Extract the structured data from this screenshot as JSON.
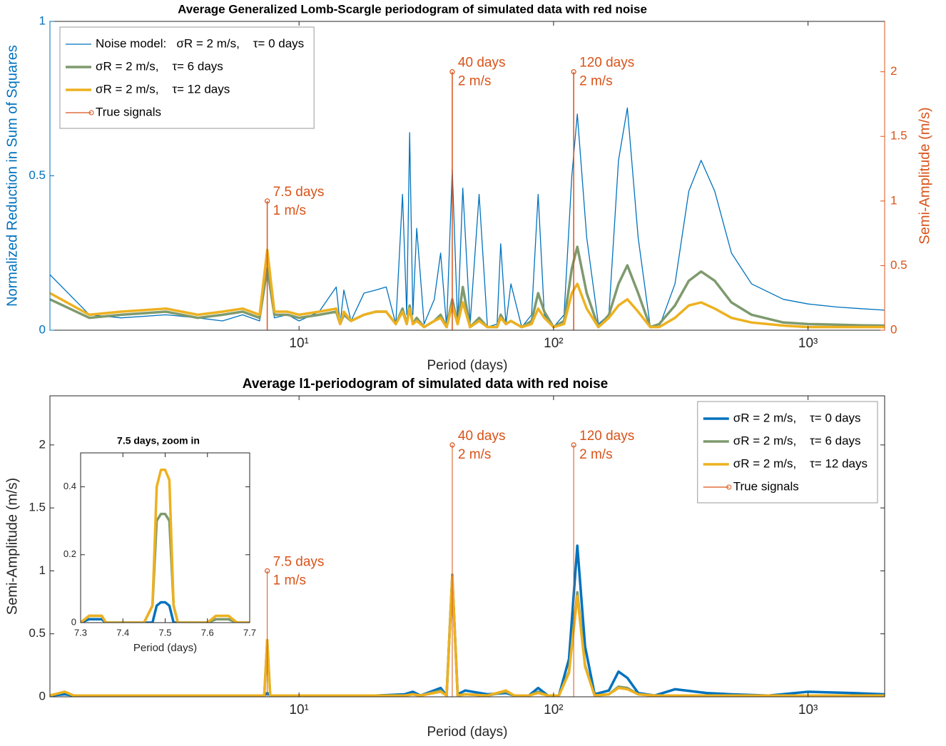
{
  "chart_data": [
    {
      "type": "line",
      "title": "Average Generalized Lomb-Scargle periodogram of simulated data with red noise",
      "xlabel": "Period (days)",
      "ylabel": "Normalized Reduction in Sum of Squares",
      "y2label": "Semi-Amplitude (m/s)",
      "y_color": "#0072BD",
      "y2_color": "#D95319",
      "xscale": "log",
      "xlim": [
        1.05,
        2000
      ],
      "xticks": [
        {
          "value": 10,
          "label": "10¹"
        },
        {
          "value": 100,
          "label": "10²"
        },
        {
          "value": 1000,
          "label": "10³"
        }
      ],
      "ylim": [
        0,
        1
      ],
      "yticks": [
        0,
        0.5,
        1
      ],
      "y2lim": [
        0,
        2.39
      ],
      "y2ticks": [
        0,
        0.5,
        1,
        1.5,
        2
      ],
      "legend": "upper left",
      "x": [
        1.05,
        1.5,
        2,
        3,
        4,
        5,
        6,
        7,
        7.5,
        8,
        9,
        10,
        12,
        14,
        14.5,
        15,
        16,
        18,
        20,
        22,
        24,
        25.5,
        26.5,
        27.2,
        28,
        29,
        31,
        34,
        36,
        38,
        40,
        42,
        44,
        47,
        51,
        55,
        60,
        62,
        65,
        68,
        75,
        82,
        87,
        92,
        100,
        110,
        118,
        124,
        135,
        150,
        165,
        180,
        195,
        215,
        240,
        260,
        300,
        340,
        380,
        430,
        500,
        600,
        800,
        1000,
        1300,
        1600,
        2000
      ],
      "series": [
        {
          "name": "Noise model:   σR = 2 m/s,    τ= 0 days",
          "color": "#0072BD",
          "line_width": 1.3,
          "values": [
            0.18,
            0.05,
            0.04,
            0.05,
            0.04,
            0.03,
            0.05,
            0.03,
            0.2,
            0.04,
            0.05,
            0.03,
            0.06,
            0.14,
            0.02,
            0.13,
            0.03,
            0.12,
            0.13,
            0.14,
            0.02,
            0.44,
            0.05,
            0.64,
            0.05,
            0.33,
            0.02,
            0.1,
            0.25,
            0.01,
            0.52,
            0.02,
            0.46,
            0.02,
            0.44,
            0.01,
            0.02,
            0.28,
            0.02,
            0.15,
            0.01,
            0.05,
            0.44,
            0.05,
            0.01,
            0.05,
            0.5,
            0.7,
            0.3,
            0.02,
            0.05,
            0.55,
            0.72,
            0.3,
            0.01,
            0.01,
            0.15,
            0.45,
            0.55,
            0.45,
            0.25,
            0.15,
            0.1,
            0.085,
            0.075,
            0.07,
            0.065
          ]
        },
        {
          "name": "σR = 2 m/s,    τ= 6 days",
          "color": "#7E9A6E",
          "line_width": 3.5,
          "values": [
            0.1,
            0.04,
            0.05,
            0.06,
            0.04,
            0.05,
            0.06,
            0.04,
            0.2,
            0.05,
            0.05,
            0.04,
            0.05,
            0.06,
            0.02,
            0.05,
            0.03,
            0.05,
            0.06,
            0.06,
            0.02,
            0.07,
            0.02,
            0.08,
            0.02,
            0.04,
            0.01,
            0.03,
            0.05,
            0.01,
            0.1,
            0.02,
            0.14,
            0.01,
            0.04,
            0.01,
            0.01,
            0.05,
            0.02,
            0.03,
            0.01,
            0.03,
            0.12,
            0.06,
            0.01,
            0.03,
            0.2,
            0.27,
            0.12,
            0.01,
            0.05,
            0.15,
            0.21,
            0.12,
            0.01,
            0.02,
            0.08,
            0.16,
            0.19,
            0.16,
            0.09,
            0.05,
            0.025,
            0.02,
            0.018,
            0.016,
            0.015
          ]
        },
        {
          "name": "σR = 2 m/s,    τ= 12 days",
          "color": "#EDB120",
          "line_width": 3.5,
          "values": [
            0.12,
            0.05,
            0.06,
            0.07,
            0.05,
            0.06,
            0.07,
            0.05,
            0.26,
            0.06,
            0.06,
            0.05,
            0.06,
            0.07,
            0.02,
            0.06,
            0.03,
            0.05,
            0.06,
            0.06,
            0.02,
            0.06,
            0.02,
            0.07,
            0.02,
            0.03,
            0.01,
            0.03,
            0.04,
            0.01,
            0.08,
            0.02,
            0.09,
            0.01,
            0.03,
            0.01,
            0.01,
            0.04,
            0.02,
            0.03,
            0.01,
            0.02,
            0.07,
            0.04,
            0.01,
            0.02,
            0.12,
            0.15,
            0.07,
            0.01,
            0.04,
            0.08,
            0.1,
            0.06,
            0.01,
            0.01,
            0.04,
            0.08,
            0.09,
            0.07,
            0.04,
            0.025,
            0.015,
            0.01,
            0.01,
            0.01,
            0.01
          ]
        },
        {
          "name": "True signals",
          "type": "stem",
          "axis": "y2",
          "color": "#D95319",
          "line_width": 1.5,
          "x": [
            7.5,
            40,
            120
          ],
          "values": [
            1,
            2,
            2
          ],
          "annotations": [
            [
              "7.5 days",
              "1 m/s"
            ],
            [
              "40 days",
              "2 m/s"
            ],
            [
              "120 days",
              "2 m/s"
            ]
          ]
        }
      ]
    },
    {
      "type": "line",
      "title": "Average l1-periodogram of simulated data with red noise",
      "xlabel": "Period (days)",
      "ylabel": "Semi-Amplitude (m/s)",
      "xscale": "log",
      "xlim": [
        1.05,
        2000
      ],
      "xticks": [
        {
          "value": 10,
          "label": "10¹"
        },
        {
          "value": 100,
          "label": "10²"
        },
        {
          "value": 1000,
          "label": "10³"
        }
      ],
      "ylim": [
        0,
        2.39
      ],
      "yticks": [
        0,
        0.5,
        1,
        1.5,
        2
      ],
      "legend": "upper right",
      "x": [
        1.05,
        1.2,
        1.3,
        2,
        5,
        7.3,
        7.5,
        7.7,
        10,
        20,
        26,
        28,
        30,
        36,
        38,
        40,
        42,
        45,
        55,
        65,
        70,
        80,
        87,
        95,
        105,
        115,
        124,
        133,
        145,
        165,
        180,
        195,
        215,
        250,
        300,
        400,
        500,
        700,
        1000,
        1500,
        2000
      ],
      "series": [
        {
          "name": "σR = 2 m/s,    τ= 0 days",
          "color": "#0072BD",
          "line_width": 3.5,
          "values": [
            0.01,
            0.02,
            0.01,
            0.01,
            0.01,
            0.01,
            0.03,
            0.01,
            0.01,
            0.01,
            0.02,
            0.04,
            0.01,
            0.07,
            0.01,
            0.95,
            0.02,
            0.05,
            0.02,
            0.03,
            0.01,
            0.01,
            0.07,
            0.01,
            0.01,
            0.3,
            1.2,
            0.4,
            0.02,
            0.05,
            0.2,
            0.15,
            0.03,
            0.01,
            0.06,
            0.03,
            0.02,
            0.01,
            0.04,
            0.03,
            0.02
          ]
        },
        {
          "name": "σR = 2 m/s,    τ= 6 days",
          "color": "#7E9A6E",
          "line_width": 3.5,
          "values": [
            0.01,
            0.04,
            0.01,
            0.01,
            0.01,
            0.01,
            0.45,
            0.01,
            0.01,
            0.01,
            0.01,
            0.02,
            0.01,
            0.05,
            0.01,
            0.97,
            0.01,
            0.02,
            0.01,
            0.04,
            0.01,
            0.01,
            0.04,
            0.01,
            0.01,
            0.2,
            0.83,
            0.25,
            0.01,
            0.02,
            0.08,
            0.07,
            0.02,
            0.01,
            0.01,
            0.01,
            0.01,
            0.01,
            0.01,
            0.01,
            0.01
          ]
        },
        {
          "name": "σR = 2 m/s,    τ= 12 days",
          "color": "#EDB120",
          "line_width": 3.5,
          "values": [
            0.01,
            0.04,
            0.01,
            0.01,
            0.01,
            0.01,
            0.45,
            0.01,
            0.01,
            0.01,
            0.01,
            0.02,
            0.01,
            0.04,
            0.01,
            0.95,
            0.01,
            0.02,
            0.01,
            0.05,
            0.01,
            0.01,
            0.03,
            0.01,
            0.01,
            0.19,
            0.8,
            0.24,
            0.01,
            0.02,
            0.07,
            0.06,
            0.02,
            0.01,
            0.01,
            0.01,
            0.01,
            0.01,
            0.01,
            0.01,
            0.01
          ]
        },
        {
          "name": "True signals",
          "type": "stem",
          "color": "#D95319",
          "line_width": 1,
          "x": [
            7.5,
            40,
            120
          ],
          "values": [
            1,
            2,
            2
          ],
          "annotations": [
            [
              "7.5 days",
              "1 m/s"
            ],
            [
              "40 days",
              "2 m/s"
            ],
            [
              "120 days",
              "2 m/s"
            ]
          ]
        }
      ]
    },
    {
      "type": "line",
      "title": "7.5 days, zoom in",
      "xlabel": "Period (days)",
      "xlim": [
        7.3,
        7.7
      ],
      "xticks": [
        7.3,
        7.4,
        7.5,
        7.6,
        7.7
      ],
      "ylim": [
        0,
        0.5
      ],
      "yticks": [
        0,
        0.2,
        0.4
      ],
      "x": [
        7.3,
        7.32,
        7.35,
        7.36,
        7.37,
        7.4,
        7.45,
        7.47,
        7.48,
        7.49,
        7.5,
        7.51,
        7.52,
        7.53,
        7.55,
        7.6,
        7.62,
        7.65,
        7.67,
        7.68,
        7.7
      ],
      "series": [
        {
          "color": "#0072BD",
          "line_width": 3.5,
          "values": [
            0,
            0.01,
            0.01,
            0,
            0,
            0,
            0,
            0,
            0.05,
            0.06,
            0.06,
            0.05,
            0,
            0,
            0,
            0,
            0.01,
            0.01,
            0,
            0,
            0
          ]
        },
        {
          "color": "#7E9A6E",
          "line_width": 3.5,
          "values": [
            0,
            0.02,
            0.02,
            0,
            0,
            0,
            0,
            0.05,
            0.3,
            0.32,
            0.32,
            0.3,
            0.05,
            0,
            0,
            0,
            0.01,
            0.01,
            0,
            0,
            0
          ]
        },
        {
          "color": "#EDB120",
          "line_width": 3.5,
          "values": [
            0,
            0.02,
            0.02,
            0,
            0,
            0,
            0,
            0.05,
            0.4,
            0.45,
            0.45,
            0.42,
            0.05,
            0,
            0,
            0,
            0.02,
            0.02,
            0,
            0,
            0
          ]
        }
      ]
    }
  ]
}
